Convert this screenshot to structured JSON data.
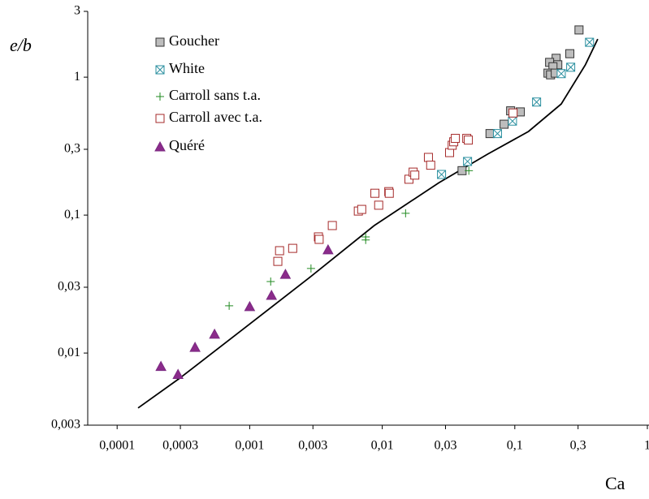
{
  "chart_data": {
    "type": "scatter",
    "ylabel": "e/b",
    "xlabel": "Ca",
    "log_x": true,
    "log_y": true,
    "xlim": [
      6e-05,
      1
    ],
    "ylim": [
      0.003,
      3
    ],
    "xticks": [
      {
        "value": 0.0001,
        "label": "0,0001"
      },
      {
        "value": 0.0003,
        "label": "0,0003"
      },
      {
        "value": 0.001,
        "label": "0,001"
      },
      {
        "value": 0.003,
        "label": "0,003"
      },
      {
        "value": 0.01,
        "label": "0,01"
      },
      {
        "value": 0.03,
        "label": "0,03"
      },
      {
        "value": 0.1,
        "label": "0,1"
      },
      {
        "value": 0.3,
        "label": "0,3"
      },
      1
    ],
    "yticks": [
      {
        "value": 0.003,
        "label": "0,003"
      },
      {
        "value": 0.01,
        "label": "0,01"
      },
      {
        "value": 0.03,
        "label": "0,03"
      },
      {
        "value": 0.1,
        "label": "0,1"
      },
      {
        "value": 0.3,
        "label": "0,3"
      },
      1,
      3
    ],
    "legend": "upper left",
    "series": [
      {
        "name": "Goucher",
        "marker": "square",
        "color": "#333333",
        "fill": "#bdbdbd",
        "x": [
          0.305,
          0.26,
          0.205,
          0.183,
          0.211,
          0.194,
          0.178,
          0.186,
          0.202,
          0.11,
          0.093,
          0.083,
          0.065,
          0.04
        ],
        "values": [
          2.2,
          1.48,
          1.37,
          1.28,
          1.23,
          1.19,
          1.07,
          1.04,
          1.07,
          0.56,
          0.57,
          0.456,
          0.39,
          0.21
        ]
      },
      {
        "name": "White",
        "marker": "boxx",
        "color": "#2a8f9f",
        "fill": "#ffffff",
        "x": [
          0.366,
          0.264,
          0.224,
          0.146,
          0.096,
          0.074,
          0.044,
          0.028
        ],
        "values": [
          1.79,
          1.18,
          1.06,
          0.66,
          0.48,
          0.39,
          0.245,
          0.197
        ]
      },
      {
        "name": "Carroll sans t.a.",
        "marker": "plus",
        "color": "#228b22",
        "fill": "none",
        "x": [
          0.0007,
          0.00144,
          0.0029,
          0.0075,
          0.0075,
          0.015,
          0.045
        ],
        "values": [
          0.022,
          0.033,
          0.041,
          0.0695,
          0.066,
          0.103,
          0.21
        ]
      },
      {
        "name": "Carroll avec t.a.",
        "marker": "square",
        "color": "#a52a2a",
        "fill": "#ffffff",
        "x": [
          0.00168,
          0.00163,
          0.00211,
          0.0033,
          0.00334,
          0.0042,
          0.0066,
          0.007,
          0.0094,
          0.0088,
          0.0112,
          0.0113,
          0.0159,
          0.0171,
          0.0176,
          0.0223,
          0.0232,
          0.0322,
          0.0337,
          0.0346,
          0.0356,
          0.0434,
          0.0446,
          0.097
        ],
        "values": [
          0.0552,
          0.0462,
          0.0574,
          0.0695,
          0.0667,
          0.084,
          0.107,
          0.11,
          0.118,
          0.144,
          0.148,
          0.144,
          0.182,
          0.205,
          0.195,
          0.262,
          0.23,
          0.284,
          0.321,
          0.34,
          0.36,
          0.36,
          0.35,
          0.55
        ]
      },
      {
        "name": "Quéré",
        "marker": "triangle",
        "color": "#7b2a82",
        "fill": "#8b2b8b",
        "x": [
          0.000214,
          0.000288,
          0.000387,
          0.000543,
          0.001,
          0.00146,
          0.00186,
          0.0039
        ],
        "values": [
          0.008,
          0.007,
          0.011,
          0.0137,
          0.0217,
          0.0262,
          0.0372,
          0.056
        ]
      }
    ],
    "curve": {
      "color": "#000000",
      "x": [
        0.000144,
        0.000292,
        0.0009,
        0.0028,
        0.0087,
        0.0268,
        0.0625,
        0.127,
        0.224,
        0.341,
        0.422
      ],
      "values": [
        0.004,
        0.0065,
        0.015,
        0.035,
        0.084,
        0.172,
        0.277,
        0.404,
        0.64,
        1.23,
        1.89
      ]
    }
  }
}
